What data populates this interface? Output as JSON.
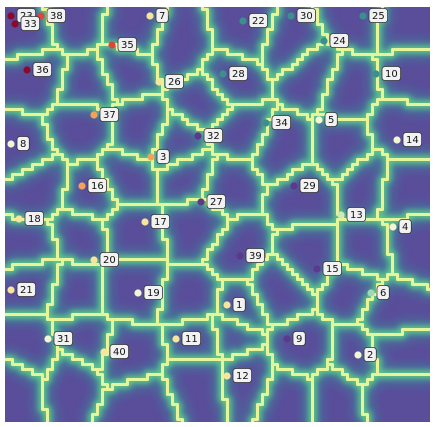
{
  "chart_data": {
    "type": "scatter",
    "background": "voronoi-style ridge heatmap (viridis colormap)",
    "colormap": "viridis",
    "grid": false,
    "axes_visible": false,
    "xlim": [
      0,
      425
    ],
    "ylim": [
      0,
      415
    ],
    "point_colors": {
      "dark_red": "#8b0a2a",
      "red": "#d9473f",
      "orange": "#f5a15a",
      "yellow": "#f6e59b",
      "light": "#f0f7d2",
      "purple": "#5b3a8c",
      "teal": "#3c8f8f"
    },
    "points": [
      {
        "label": "1",
        "x": 222,
        "y": 298,
        "color": "#f6e59b"
      },
      {
        "label": "2",
        "x": 353,
        "y": 348,
        "color": "#f0f7d2"
      },
      {
        "label": "3",
        "x": 146,
        "y": 150,
        "color": "#f5a15a"
      },
      {
        "label": "4",
        "x": 388,
        "y": 220,
        "color": "#f0f7d2"
      },
      {
        "label": "5",
        "x": 314,
        "y": 113,
        "color": "#f0f7d2"
      },
      {
        "label": "6",
        "x": 366,
        "y": 286,
        "color": "#9fd8b6"
      },
      {
        "label": "7",
        "x": 145,
        "y": 9,
        "color": "#f6e59b"
      },
      {
        "label": "8",
        "x": 6,
        "y": 137,
        "color": "#f0f7d2"
      },
      {
        "label": "9",
        "x": 282,
        "y": 332,
        "color": "#5b3a8c"
      },
      {
        "label": "10",
        "x": 371,
        "y": 67,
        "color": "#3c8f8f"
      },
      {
        "label": "11",
        "x": 171,
        "y": 332,
        "color": "#f6e59b"
      },
      {
        "label": "12",
        "x": 222,
        "y": 369,
        "color": "#f6e59b"
      },
      {
        "label": "13",
        "x": 336,
        "y": 208,
        "color": "#cfe9b7"
      },
      {
        "label": "14",
        "x": 392,
        "y": 133,
        "color": "#f0f7d2"
      },
      {
        "label": "15",
        "x": 312,
        "y": 262,
        "color": "#5b3a8c"
      },
      {
        "label": "16",
        "x": 77,
        "y": 179,
        "color": "#f5a15a"
      },
      {
        "label": "17",
        "x": 140,
        "y": 215,
        "color": "#f6e59b"
      },
      {
        "label": "18",
        "x": 14,
        "y": 212,
        "color": "#f6e59b"
      },
      {
        "label": "19",
        "x": 133,
        "y": 286,
        "color": "#f0f7d2"
      },
      {
        "label": "20",
        "x": 89,
        "y": 253,
        "color": "#f6e59b"
      },
      {
        "label": "21",
        "x": 6,
        "y": 283,
        "color": "#f6e59b"
      },
      {
        "label": "22",
        "x": 238,
        "y": 14,
        "color": "#3c8f8f"
      },
      {
        "label": "23",
        "x": 6,
        "y": 9,
        "color": "#8b0a2a"
      },
      {
        "label": "24",
        "x": 319,
        "y": 34,
        "color": "#3c8f8f"
      },
      {
        "label": "25",
        "x": 358,
        "y": 9,
        "color": "#3c8f8f"
      },
      {
        "label": "26",
        "x": 154,
        "y": 75,
        "color": "#f6e59b"
      },
      {
        "label": "27",
        "x": 196,
        "y": 195,
        "color": "#5b3a8c"
      },
      {
        "label": "28",
        "x": 218,
        "y": 67,
        "color": "#3c8f8f"
      },
      {
        "label": "29",
        "x": 289,
        "y": 179,
        "color": "#5b3a8c"
      },
      {
        "label": "30",
        "x": 286,
        "y": 9,
        "color": "#3c8f8f"
      },
      {
        "label": "31",
        "x": 43,
        "y": 332,
        "color": "#f0f7d2"
      },
      {
        "label": "32",
        "x": 193,
        "y": 129,
        "color": "#5b3a8c"
      },
      {
        "label": "33",
        "x": 10,
        "y": 17,
        "color": "#8b0a2a"
      },
      {
        "label": "34",
        "x": 261,
        "y": 116,
        "color": "#3c8f8f"
      },
      {
        "label": "35",
        "x": 107,
        "y": 38,
        "color": "#d9473f"
      },
      {
        "label": "36",
        "x": 22,
        "y": 63,
        "color": "#8b0a2a"
      },
      {
        "label": "37",
        "x": 89,
        "y": 108,
        "color": "#f5a15a"
      },
      {
        "label": "38",
        "x": 36,
        "y": 9,
        "color": "#d9473f"
      },
      {
        "label": "39",
        "x": 235,
        "y": 249,
        "color": "#5b3a8c"
      },
      {
        "label": "40",
        "x": 99,
        "y": 345,
        "color": "#f6e59b"
      }
    ]
  }
}
